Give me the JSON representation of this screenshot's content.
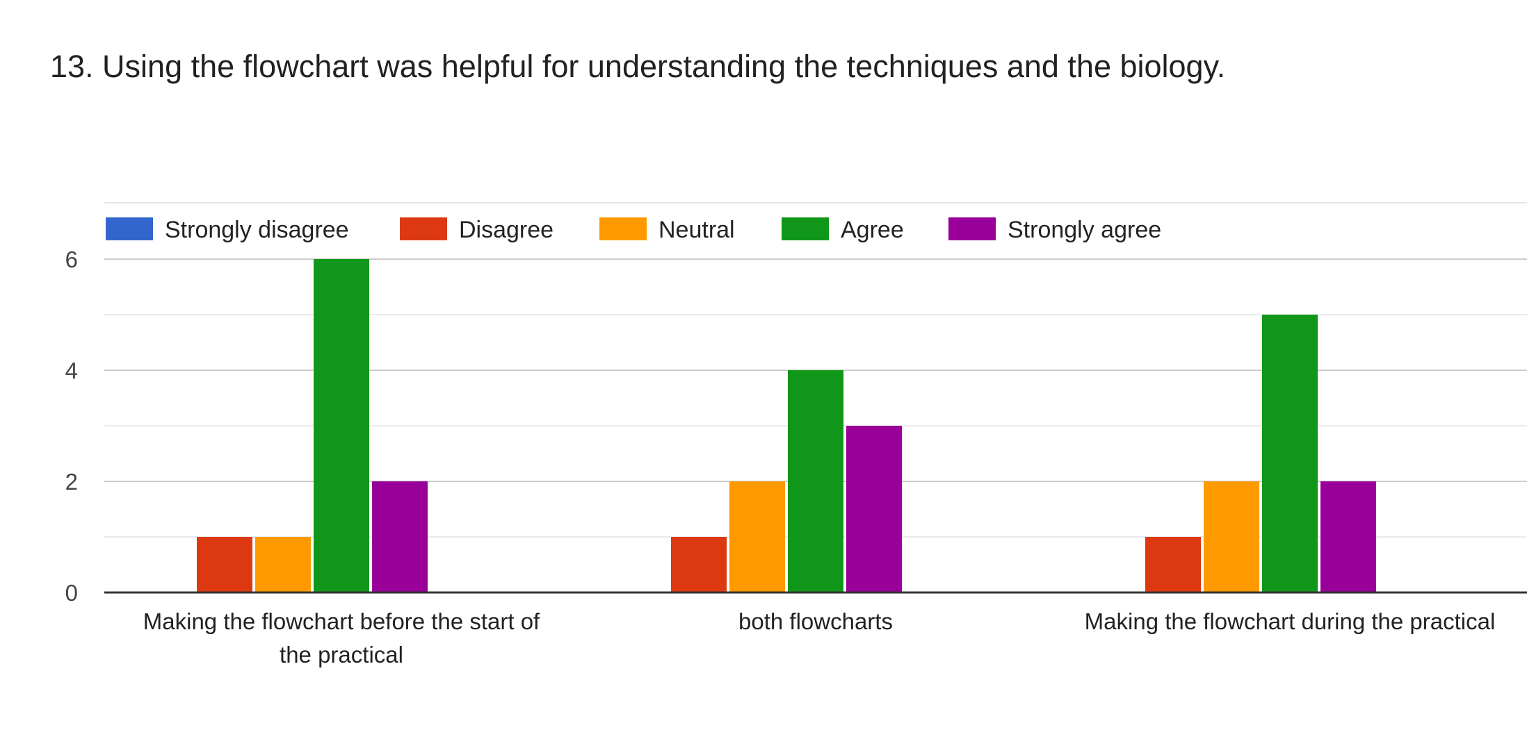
{
  "question": {
    "title": "13. Using the flowchart was helpful for understanding the techniques and the biology."
  },
  "chart_data": {
    "type": "bar",
    "title": "13. Using the flowchart was helpful for understanding the techniques and the biology.",
    "xlabel": "",
    "ylabel": "",
    "categories": [
      [
        "Making the flowchart before the start of",
        "the practical"
      ],
      [
        "both flowcharts"
      ],
      [
        "Making the flowchart during the practical"
      ]
    ],
    "series": [
      {
        "name": "Strongly disagree",
        "color": "#3366cc",
        "values": [
          0,
          0,
          0
        ]
      },
      {
        "name": "Disagree",
        "color": "#dc3912",
        "values": [
          1,
          1,
          1
        ]
      },
      {
        "name": "Neutral",
        "color": "#ff9900",
        "values": [
          1,
          2,
          2
        ]
      },
      {
        "name": "Agree",
        "color": "#109618",
        "values": [
          6,
          4,
          5
        ]
      },
      {
        "name": "Strongly agree",
        "color": "#990099",
        "values": [
          2,
          3,
          2
        ]
      }
    ],
    "ylim": [
      0,
      6
    ],
    "yticks": [
      0,
      2,
      4,
      6
    ],
    "grid": true,
    "legend_position": "top-left"
  }
}
